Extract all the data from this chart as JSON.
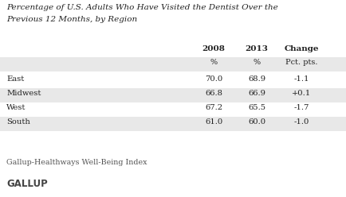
{
  "title_line1": "Percentage of U.S. Adults Who Have Visited the Dentist Over the",
  "title_line2": "Previous 12 Months, by Region",
  "col_headers": [
    "2008",
    "2013",
    "Change"
  ],
  "col_subheaders": [
    "%",
    "%",
    "Pct. pts."
  ],
  "rows": [
    [
      "East",
      "70.0",
      "68.9",
      "-1.1"
    ],
    [
      "Midwest",
      "66.8",
      "66.9",
      "+0.1"
    ],
    [
      "West",
      "67.2",
      "65.5",
      "-1.7"
    ],
    [
      "South",
      "61.0",
      "60.0",
      "-1.0"
    ]
  ],
  "footer": "Gallup-Healthways Well-Being Index",
  "brand": "GALLUP",
  "row_bg_shaded": "#e8e8e8",
  "row_bg_plain": "#ffffff",
  "fig_bg": "#ffffff",
  "text_color": "#222222",
  "footer_color": "#555555"
}
